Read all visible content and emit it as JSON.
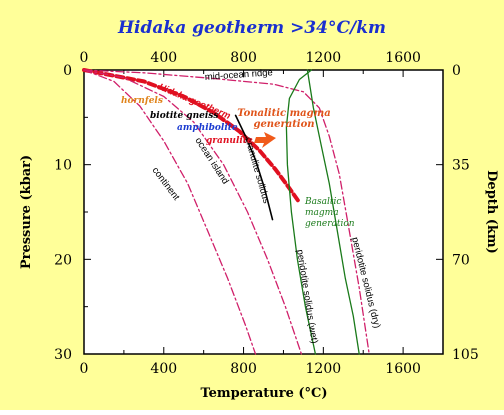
{
  "chart_data": {
    "type": "line",
    "title": "Hidaka geotherm >34°C/km",
    "xlabel": "Temperature (°C)",
    "ylabel": "Pressure (kbar)",
    "ylabel_right": "Depth (km)",
    "xlim": [
      0,
      1800
    ],
    "ylim": [
      0,
      30
    ],
    "x_ticks": [
      "0",
      "400",
      "800",
      "1200",
      "1600"
    ],
    "y_ticks": [
      "0",
      "10",
      "20",
      "30"
    ],
    "depth_ticks": [
      {
        "label": "0",
        "p": 0
      },
      {
        "label": "35",
        "p": 10
      },
      {
        "label": "70",
        "p": 20
      },
      {
        "label": "105",
        "p": 30
      }
    ],
    "colors": {
      "background": "#ffff99",
      "title": "#1a2fd0",
      "geotherm": "#e01020",
      "geotherm_label": "#e01020",
      "ref_geotherm": "#d0206a",
      "solidus": "#1a7a1a",
      "granulite_solidus": "#000000",
      "annotation": "#e0541a",
      "arrow": "#f05a1a"
    },
    "series": [
      {
        "name": "Hidaka geotherm",
        "kind": "geotherm",
        "points": [
          [
            0,
            0
          ],
          [
            300,
            1.2
          ],
          [
            500,
            2.8
          ],
          [
            650,
            4.5
          ],
          [
            780,
            6.5
          ],
          [
            880,
            8.5
          ],
          [
            960,
            10.5
          ],
          [
            1030,
            12.5
          ],
          [
            1080,
            14
          ]
        ]
      },
      {
        "name": "mid-ocean ridge",
        "kind": "ref",
        "points": [
          [
            0,
            0
          ],
          [
            300,
            0.3
          ],
          [
            650,
            0.9
          ],
          [
            950,
            1.5
          ],
          [
            1100,
            2.3
          ],
          [
            1180,
            4
          ],
          [
            1230,
            7
          ],
          [
            1280,
            11
          ],
          [
            1330,
            17
          ],
          [
            1380,
            23
          ],
          [
            1430,
            30
          ]
        ]
      },
      {
        "name": "ocean island",
        "kind": "ref",
        "points": [
          [
            0,
            0
          ],
          [
            200,
            0.8
          ],
          [
            400,
            2.8
          ],
          [
            550,
            5.5
          ],
          [
            700,
            10
          ],
          [
            820,
            15
          ],
          [
            920,
            20
          ],
          [
            1010,
            25
          ],
          [
            1090,
            30
          ]
        ]
      },
      {
        "name": "continent",
        "kind": "ref",
        "points": [
          [
            0,
            0
          ],
          [
            150,
            1.2
          ],
          [
            280,
            3.8
          ],
          [
            400,
            7.5
          ],
          [
            520,
            12
          ],
          [
            620,
            17
          ],
          [
            720,
            22
          ],
          [
            810,
            27
          ],
          [
            860,
            30
          ]
        ]
      },
      {
        "name": "granulite solidus",
        "kind": "granulite",
        "points": [
          [
            760,
            4.8
          ],
          [
            810,
            7
          ],
          [
            860,
            9.5
          ],
          [
            905,
            12.5
          ],
          [
            945,
            15.8
          ]
        ]
      },
      {
        "name": "peridotite solidus (wet)",
        "kind": "solidus",
        "points": [
          [
            1140,
            0
          ],
          [
            1080,
            1
          ],
          [
            1030,
            3
          ],
          [
            1015,
            6
          ],
          [
            1020,
            10
          ],
          [
            1040,
            15
          ],
          [
            1070,
            20
          ],
          [
            1110,
            25
          ],
          [
            1160,
            30
          ]
        ]
      },
      {
        "name": "peridotite solidus (dry)",
        "kind": "solidus",
        "points": [
          [
            1120,
            0
          ],
          [
            1150,
            4
          ],
          [
            1190,
            8
          ],
          [
            1230,
            12
          ],
          [
            1270,
            17
          ],
          [
            1310,
            22
          ],
          [
            1350,
            26
          ],
          [
            1380,
            30
          ]
        ]
      }
    ],
    "annotations": {
      "hornfels": "hornfels",
      "biotite_gneiss": "biotite gneiss",
      "amphibolite": "amphibolite",
      "granulite": "granulite",
      "tonalitic": [
        "Tonalitic magma",
        "generation"
      ],
      "basaltic": [
        "Basaltic",
        "magma",
        "generation"
      ]
    },
    "facies_colors": {
      "hornfels": "#e0831a",
      "biotite_gneiss": "#000000",
      "amphibolite": "#1a3ad0",
      "granulite": "#e01020"
    }
  }
}
